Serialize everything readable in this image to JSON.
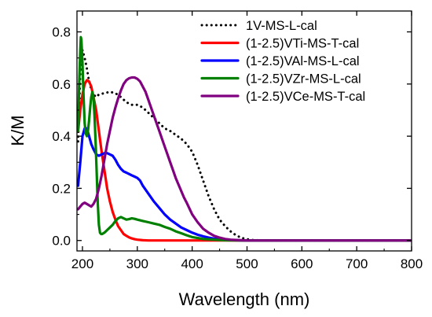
{
  "chart_data": {
    "type": "line",
    "xlabel": "Wavelength (nm)",
    "ylabel": "K/M",
    "xlim": [
      190,
      800
    ],
    "ylim": [
      -0.04,
      0.88
    ],
    "x_ticks": [
      200,
      300,
      400,
      500,
      600,
      700,
      800
    ],
    "y_ticks": [
      0.0,
      0.2,
      0.4,
      0.6,
      0.8
    ],
    "y_tick_labels": [
      "0.0",
      "0.2",
      "0.4",
      "0.6",
      "0.8"
    ],
    "grid": false,
    "legend_position": "top-right",
    "series": [
      {
        "name": "1V-MS-L-cal",
        "color": "#000000",
        "style": "dotted",
        "x": [
          192,
          196,
          200,
          204,
          208,
          212,
          216,
          220,
          225,
          230,
          240,
          250,
          260,
          270,
          280,
          290,
          300,
          310,
          320,
          330,
          340,
          350,
          360,
          370,
          380,
          390,
          400,
          410,
          420,
          430,
          440,
          450,
          460,
          470,
          480,
          490,
          500,
          510,
          520,
          530,
          540,
          550,
          600,
          700,
          800
        ],
        "y": [
          0.38,
          0.64,
          0.73,
          0.7,
          0.66,
          0.61,
          0.58,
          0.56,
          0.55,
          0.56,
          0.565,
          0.57,
          0.565,
          0.55,
          0.53,
          0.52,
          0.52,
          0.51,
          0.49,
          0.47,
          0.45,
          0.43,
          0.42,
          0.405,
          0.39,
          0.37,
          0.34,
          0.29,
          0.23,
          0.17,
          0.12,
          0.08,
          0.055,
          0.035,
          0.02,
          0.01,
          0.005,
          0.002,
          0.001,
          0.0,
          0.0,
          0.0,
          0.0,
          0.0,
          0.0
        ]
      },
      {
        "name": "(1-2.5)VTi-MS-T-cal",
        "color": "#ff0000",
        "style": "solid",
        "x": [
          192,
          196,
          200,
          204,
          208,
          212,
          216,
          220,
          225,
          230,
          235,
          240,
          245,
          250,
          255,
          260,
          265,
          270,
          275,
          280,
          285,
          290,
          295,
          300,
          310,
          320,
          350,
          800
        ],
        "y": [
          0.42,
          0.5,
          0.56,
          0.6,
          0.615,
          0.61,
          0.59,
          0.55,
          0.5,
          0.42,
          0.34,
          0.27,
          0.2,
          0.15,
          0.11,
          0.08,
          0.055,
          0.04,
          0.025,
          0.018,
          0.012,
          0.008,
          0.005,
          0.003,
          0.001,
          0.0,
          0.0,
          0.0
        ]
      },
      {
        "name": "(1-2.5)VAl-MS-L-cal",
        "color": "#0000ff",
        "style": "solid",
        "x": [
          192,
          196,
          200,
          204,
          208,
          212,
          216,
          220,
          225,
          230,
          235,
          240,
          245,
          250,
          255,
          260,
          265,
          270,
          275,
          280,
          285,
          290,
          295,
          300,
          305,
          310,
          320,
          330,
          340,
          350,
          360,
          370,
          380,
          390,
          400,
          410,
          420,
          430,
          440,
          450,
          460,
          470,
          480,
          490,
          500,
          510,
          800
        ],
        "y": [
          0.21,
          0.3,
          0.4,
          0.43,
          0.43,
          0.4,
          0.37,
          0.35,
          0.33,
          0.325,
          0.33,
          0.335,
          0.335,
          0.33,
          0.325,
          0.31,
          0.29,
          0.275,
          0.265,
          0.26,
          0.255,
          0.25,
          0.245,
          0.24,
          0.23,
          0.21,
          0.18,
          0.15,
          0.125,
          0.1,
          0.08,
          0.065,
          0.05,
          0.04,
          0.03,
          0.022,
          0.016,
          0.011,
          0.007,
          0.005,
          0.003,
          0.002,
          0.001,
          0.0,
          0.0,
          0.0,
          0.0
        ]
      },
      {
        "name": "(1-2.5)VZr-MS-L-cal",
        "color": "#008000",
        "style": "solid",
        "x": [
          192,
          194,
          196,
          197,
          198,
          200,
          202,
          204,
          206,
          208,
          210,
          212,
          214,
          216,
          218,
          220,
          222,
          224,
          226,
          228,
          230,
          232,
          234,
          236,
          240,
          245,
          250,
          255,
          260,
          265,
          270,
          275,
          280,
          285,
          290,
          295,
          300,
          310,
          320,
          330,
          340,
          350,
          360,
          370,
          380,
          390,
          400,
          420,
          440,
          460,
          480,
          500,
          800
        ],
        "y": [
          0.42,
          0.6,
          0.73,
          0.78,
          0.77,
          0.68,
          0.55,
          0.45,
          0.41,
          0.4,
          0.42,
          0.46,
          0.51,
          0.55,
          0.57,
          0.55,
          0.48,
          0.38,
          0.26,
          0.14,
          0.06,
          0.03,
          0.025,
          0.025,
          0.03,
          0.04,
          0.05,
          0.06,
          0.075,
          0.085,
          0.09,
          0.085,
          0.08,
          0.082,
          0.085,
          0.083,
          0.08,
          0.075,
          0.07,
          0.065,
          0.06,
          0.052,
          0.045,
          0.035,
          0.028,
          0.02,
          0.013,
          0.006,
          0.003,
          0.001,
          0.0,
          0.0,
          0.0
        ]
      },
      {
        "name": "(1-2.5)VCe-MS-T-cal",
        "color": "#800080",
        "style": "solid",
        "x": [
          192,
          196,
          200,
          204,
          208,
          212,
          216,
          220,
          225,
          230,
          235,
          240,
          245,
          250,
          255,
          260,
          265,
          270,
          275,
          280,
          285,
          290,
          295,
          300,
          305,
          310,
          315,
          320,
          325,
          330,
          335,
          340,
          345,
          350,
          355,
          360,
          365,
          370,
          375,
          380,
          385,
          390,
          400,
          410,
          420,
          430,
          440,
          450,
          460,
          470,
          480,
          490,
          500,
          510,
          520,
          800
        ],
        "y": [
          0.12,
          0.13,
          0.14,
          0.145,
          0.14,
          0.135,
          0.13,
          0.14,
          0.16,
          0.2,
          0.25,
          0.31,
          0.37,
          0.42,
          0.47,
          0.51,
          0.545,
          0.575,
          0.6,
          0.615,
          0.622,
          0.625,
          0.625,
          0.62,
          0.61,
          0.59,
          0.57,
          0.54,
          0.51,
          0.48,
          0.45,
          0.42,
          0.39,
          0.36,
          0.33,
          0.3,
          0.27,
          0.24,
          0.215,
          0.19,
          0.165,
          0.145,
          0.1,
          0.07,
          0.045,
          0.03,
          0.018,
          0.011,
          0.006,
          0.003,
          0.002,
          0.001,
          0.0,
          0.0,
          0.0,
          0.0
        ]
      }
    ]
  }
}
